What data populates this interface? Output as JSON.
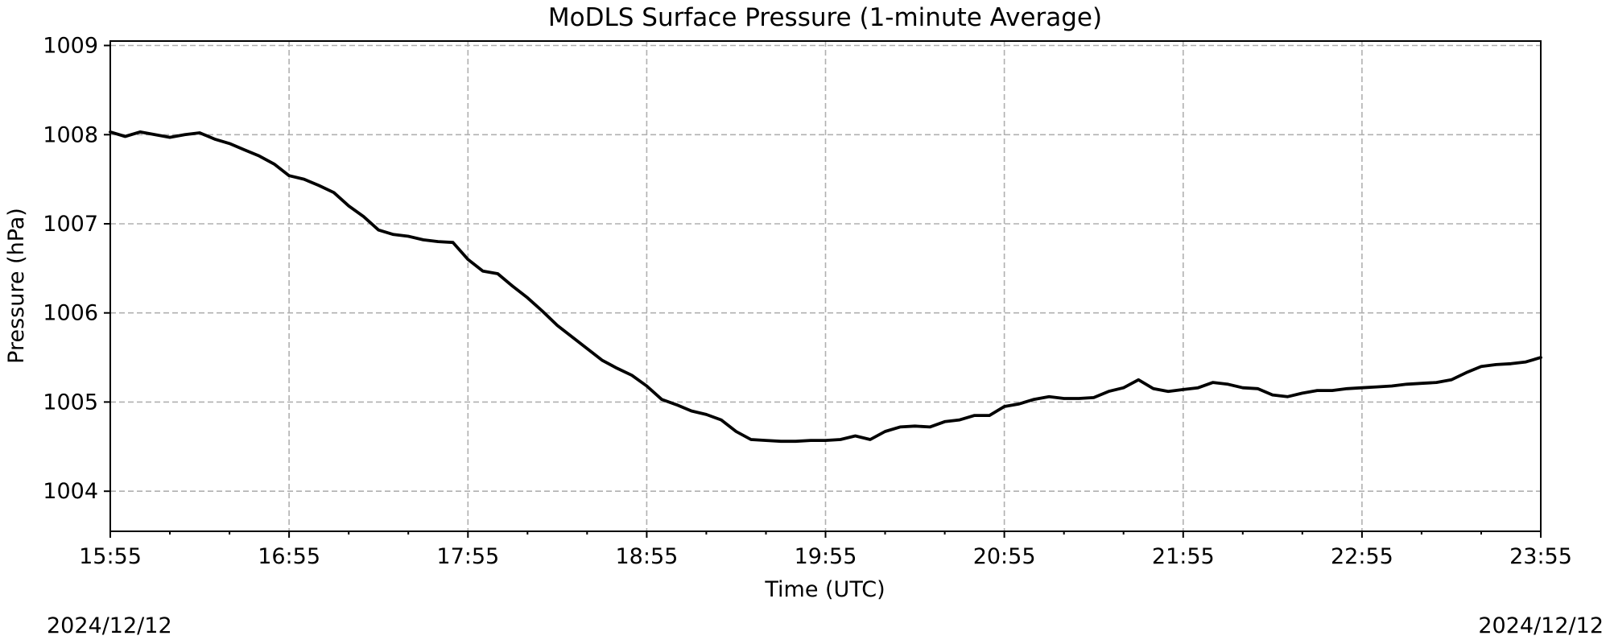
{
  "chart_data": {
    "type": "line",
    "title": "MoDLS Surface Pressure (1-minute Average)",
    "xlabel": "Time (UTC)",
    "ylabel": "Pressure (hPa)",
    "xlim": [
      "15:55",
      "23:55"
    ],
    "ylim": [
      1003.55,
      1009.05
    ],
    "x_ticks": [
      "15:55",
      "16:55",
      "17:55",
      "18:55",
      "19:55",
      "20:55",
      "21:55",
      "22:55",
      "23:55"
    ],
    "y_ticks": [
      1004,
      1005,
      1006,
      1007,
      1008,
      1009
    ],
    "grid": true,
    "date_left": "2024/12/12",
    "date_right": "2024/12/12",
    "series": [
      {
        "color": "#000000",
        "points": [
          [
            "15:55",
            1008.03
          ],
          [
            "16:00",
            1007.98
          ],
          [
            "16:05",
            1008.03
          ],
          [
            "16:10",
            1008.0
          ],
          [
            "16:15",
            1007.97
          ],
          [
            "16:20",
            1008.0
          ],
          [
            "16:25",
            1008.02
          ],
          [
            "16:30",
            1007.95
          ],
          [
            "16:35",
            1007.9
          ],
          [
            "16:40",
            1007.83
          ],
          [
            "16:45",
            1007.76
          ],
          [
            "16:50",
            1007.67
          ],
          [
            "16:55",
            1007.54
          ],
          [
            "17:00",
            1007.5
          ],
          [
            "17:05",
            1007.43
          ],
          [
            "17:10",
            1007.35
          ],
          [
            "17:15",
            1007.2
          ],
          [
            "17:20",
            1007.08
          ],
          [
            "17:25",
            1006.93
          ],
          [
            "17:30",
            1006.88
          ],
          [
            "17:35",
            1006.86
          ],
          [
            "17:40",
            1006.82
          ],
          [
            "17:45",
            1006.8
          ],
          [
            "17:50",
            1006.79
          ],
          [
            "17:55",
            1006.6
          ],
          [
            "18:00",
            1006.47
          ],
          [
            "18:05",
            1006.44
          ],
          [
            "18:10",
            1006.3
          ],
          [
            "18:15",
            1006.17
          ],
          [
            "18:20",
            1006.02
          ],
          [
            "18:25",
            1005.86
          ],
          [
            "18:30",
            1005.73
          ],
          [
            "18:35",
            1005.6
          ],
          [
            "18:40",
            1005.47
          ],
          [
            "18:45",
            1005.38
          ],
          [
            "18:50",
            1005.3
          ],
          [
            "18:55",
            1005.18
          ],
          [
            "19:00",
            1005.03
          ],
          [
            "19:05",
            1004.97
          ],
          [
            "19:10",
            1004.9
          ],
          [
            "19:15",
            1004.86
          ],
          [
            "19:20",
            1004.8
          ],
          [
            "19:25",
            1004.67
          ],
          [
            "19:30",
            1004.58
          ],
          [
            "19:35",
            1004.57
          ],
          [
            "19:40",
            1004.56
          ],
          [
            "19:45",
            1004.56
          ],
          [
            "19:50",
            1004.57
          ],
          [
            "19:55",
            1004.57
          ],
          [
            "20:00",
            1004.58
          ],
          [
            "20:05",
            1004.62
          ],
          [
            "20:10",
            1004.58
          ],
          [
            "20:15",
            1004.67
          ],
          [
            "20:20",
            1004.72
          ],
          [
            "20:25",
            1004.73
          ],
          [
            "20:30",
            1004.72
          ],
          [
            "20:35",
            1004.78
          ],
          [
            "20:40",
            1004.8
          ],
          [
            "20:45",
            1004.85
          ],
          [
            "20:50",
            1004.85
          ],
          [
            "20:55",
            1004.95
          ],
          [
            "21:00",
            1004.98
          ],
          [
            "21:05",
            1005.03
          ],
          [
            "21:10",
            1005.06
          ],
          [
            "21:15",
            1005.04
          ],
          [
            "21:20",
            1005.04
          ],
          [
            "21:25",
            1005.05
          ],
          [
            "21:30",
            1005.12
          ],
          [
            "21:35",
            1005.16
          ],
          [
            "21:40",
            1005.25
          ],
          [
            "21:45",
            1005.15
          ],
          [
            "21:50",
            1005.12
          ],
          [
            "21:55",
            1005.14
          ],
          [
            "22:00",
            1005.16
          ],
          [
            "22:05",
            1005.22
          ],
          [
            "22:10",
            1005.2
          ],
          [
            "22:15",
            1005.16
          ],
          [
            "22:20",
            1005.15
          ],
          [
            "22:25",
            1005.08
          ],
          [
            "22:30",
            1005.06
          ],
          [
            "22:35",
            1005.1
          ],
          [
            "22:40",
            1005.13
          ],
          [
            "22:45",
            1005.13
          ],
          [
            "22:50",
            1005.15
          ],
          [
            "22:55",
            1005.16
          ],
          [
            "23:00",
            1005.17
          ],
          [
            "23:05",
            1005.18
          ],
          [
            "23:10",
            1005.2
          ],
          [
            "23:15",
            1005.21
          ],
          [
            "23:20",
            1005.22
          ],
          [
            "23:25",
            1005.25
          ],
          [
            "23:30",
            1005.33
          ],
          [
            "23:35",
            1005.4
          ],
          [
            "23:40",
            1005.42
          ],
          [
            "23:45",
            1005.43
          ],
          [
            "23:50",
            1005.45
          ],
          [
            "23:55",
            1005.5
          ]
        ]
      }
    ]
  }
}
